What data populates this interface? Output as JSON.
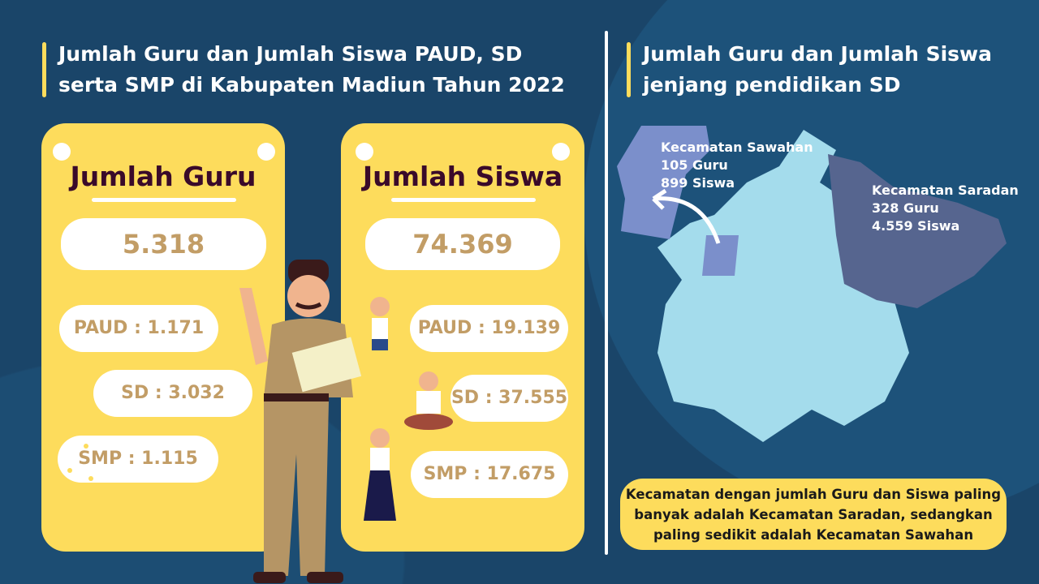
{
  "left_title": "Jumlah Guru dan Jumlah Siswa PAUD, SD serta SMP di Kabupaten Madiun Tahun 2022",
  "right_title": "Jumlah Guru dan Jumlah Siswa jenjang pendidikan SD",
  "guru": {
    "heading": "Jumlah Guru",
    "total": "5.318",
    "paud": "PAUD : 1.171",
    "sd": "SD : 3.032",
    "smp": "SMP : 1.115"
  },
  "siswa": {
    "heading": "Jumlah Siswa",
    "total": "74.369",
    "paud": "PAUD : 19.139",
    "sd": "SD : 37.555",
    "smp": "SMP : 17.675"
  },
  "map": {
    "sawahan": {
      "name": "Kecamatan Sawahan",
      "guru": "105 Guru",
      "siswa": "899 Siswa"
    },
    "saradan": {
      "name": "Kecamatan Saradan",
      "guru": "328 Guru",
      "siswa": "4.559 Siswa"
    }
  },
  "note": "Kecamatan dengan jumlah Guru dan Siswa paling banyak adalah Kecamatan Saradan, sedangkan paling sedikit adalah Kecamatan Sawahan",
  "colors": {
    "background": "#1a4569",
    "card": "#fddc5c",
    "value_text": "#c29d66",
    "heading": "#3a0a2a",
    "map_base": "#a4dcec",
    "sawahan": "#7b8fcb",
    "saradan": "#56658f"
  }
}
